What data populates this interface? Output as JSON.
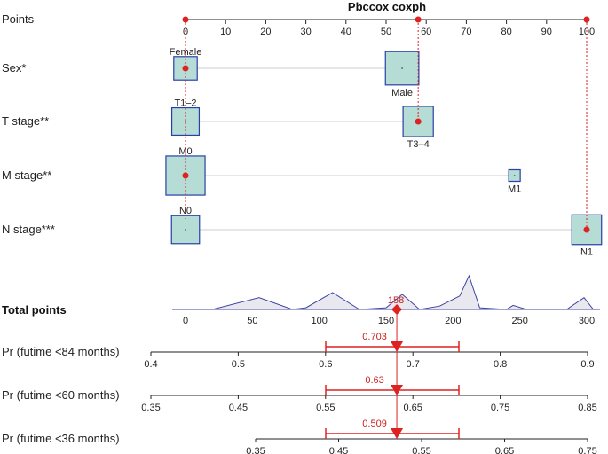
{
  "chart_data": {
    "type": "nomogram",
    "title": "Pbccox coxph",
    "colors": {
      "box_fill": "#b5ddd5",
      "box_stroke": "#2a3fa8",
      "highlight": "#dd2222",
      "axis": "#222222",
      "connector": "#cccccc"
    },
    "points_axis": {
      "label": "Points",
      "min": 0,
      "max": 100,
      "ticks": [
        0,
        10,
        20,
        30,
        40,
        50,
        60,
        70,
        80,
        90,
        100
      ]
    },
    "variables": [
      {
        "label": "Sex*",
        "levels": [
          {
            "name": "Female",
            "points": 0,
            "weight": 0.33,
            "label_side": "above"
          },
          {
            "name": "Male",
            "points": 54,
            "weight": 0.67,
            "label_side": "below"
          }
        ]
      },
      {
        "label": "T stage**",
        "levels": [
          {
            "name": "T1–2",
            "points": 0,
            "weight": 0.45,
            "label_side": "above"
          },
          {
            "name": "T3–4",
            "points": 58,
            "weight": 0.55,
            "label_side": "below"
          }
        ]
      },
      {
        "label": "M stage**",
        "levels": [
          {
            "name": "M0",
            "points": 0,
            "weight": 0.92,
            "label_side": "above"
          },
          {
            "name": "M1",
            "points": 82,
            "weight": 0.08,
            "label_side": "below"
          }
        ]
      },
      {
        "label": "N stage***",
        "levels": [
          {
            "name": "N0",
            "points": 0,
            "weight": 0.47,
            "label_side": "above"
          },
          {
            "name": "N1",
            "points": 100,
            "weight": 0.53,
            "label_side": "below"
          }
        ]
      }
    ],
    "selected": {
      "points": [
        0,
        58,
        0,
        100
      ],
      "total": 158
    },
    "total_points": {
      "label": "Total points",
      "min": 0,
      "max": 300,
      "ticks": [
        0,
        50,
        100,
        150,
        200,
        250,
        300
      ],
      "selected_label": "158",
      "density": [
        [
          0,
          0.0
        ],
        [
          20,
          0.0
        ],
        [
          55,
          0.35
        ],
        [
          80,
          0.0
        ],
        [
          90,
          0.05
        ],
        [
          110,
          0.5
        ],
        [
          130,
          0.0
        ],
        [
          150,
          0.05
        ],
        [
          162,
          0.45
        ],
        [
          175,
          0.0
        ],
        [
          190,
          0.1
        ],
        [
          205,
          0.4
        ],
        [
          212,
          1.0
        ],
        [
          220,
          0.05
        ],
        [
          240,
          0.0
        ],
        [
          245,
          0.12
        ],
        [
          255,
          0.0
        ],
        [
          285,
          0.0
        ],
        [
          298,
          0.35
        ],
        [
          305,
          0.0
        ]
      ]
    },
    "probability_axes": [
      {
        "label": "Pr (futime <84 months)",
        "ticks": [
          "0.4",
          "0.5",
          "0.6",
          "0.7",
          "0.8",
          "0.9"
        ],
        "tick_values": [
          0.4,
          0.5,
          0.6,
          0.7,
          0.8,
          0.9
        ],
        "range": [
          0.4,
          0.9
        ],
        "value": 0.703,
        "value_label": "0.703",
        "ci": [
          0.613,
          0.775
        ]
      },
      {
        "label": "Pr (futime <60 months)",
        "ticks": [
          "0.35",
          "0.45",
          "0.55",
          "0.65",
          "0.75",
          "0.85"
        ],
        "tick_values": [
          0.35,
          0.45,
          0.55,
          0.65,
          0.75,
          0.85
        ],
        "range": [
          0.35,
          0.85
        ],
        "value": 0.63,
        "value_label": "0.63",
        "ci": [
          0.55,
          0.71
        ]
      },
      {
        "label": "Pr (futime <36 months)",
        "ticks": [
          "0.35",
          "0.45",
          "0.55",
          "0.65",
          "0.75"
        ],
        "tick_values": [
          0.35,
          0.45,
          0.55,
          0.65,
          0.75
        ],
        "range": [
          0.35,
          0.75
        ],
        "value": 0.509,
        "value_label": "0.509",
        "ci": [
          0.424,
          0.583
        ]
      }
    ]
  }
}
